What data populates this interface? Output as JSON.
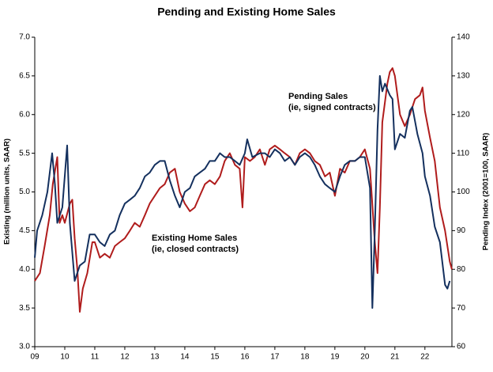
{
  "chart_data": {
    "type": "line",
    "title": "Pending and Existing Home Sales",
    "y_label": "Existing (million units, SAAR)",
    "y2_label": "Pending Index (2001=100, SAAR)",
    "xlim": [
      2009,
      2022.9
    ],
    "xticks": [
      {
        "value": 2009,
        "label": "09"
      },
      {
        "value": 2010,
        "label": "10"
      },
      {
        "value": 2011,
        "label": "11"
      },
      {
        "value": 2012,
        "label": "12"
      },
      {
        "value": 2013,
        "label": "13"
      },
      {
        "value": 2014,
        "label": "14"
      },
      {
        "value": 2015,
        "label": "15"
      },
      {
        "value": 2016,
        "label": "16"
      },
      {
        "value": 2017,
        "label": "17"
      },
      {
        "value": 2018,
        "label": "18"
      },
      {
        "value": 2019,
        "label": "19"
      },
      {
        "value": 2020,
        "label": "20"
      },
      {
        "value": 2021,
        "label": "21"
      },
      {
        "value": 2022,
        "label": "22"
      }
    ],
    "ylim": [
      3,
      7
    ],
    "yticks": [
      {
        "value": 3,
        "label": "3.0"
      },
      3.5,
      {
        "value": 4,
        "label": "4.0"
      },
      4.5,
      {
        "value": 5,
        "label": "5.0"
      },
      5.5,
      {
        "value": 6,
        "label": "6.0"
      },
      6.5,
      {
        "value": 7,
        "label": "7.0"
      }
    ],
    "y2lim": [
      60,
      140
    ],
    "y2ticks": [
      60,
      70,
      80,
      90,
      100,
      110,
      120,
      130,
      140
    ],
    "grid": false,
    "series": [
      {
        "name": "Existing Home Sales",
        "note": "(ie, closed contracts)",
        "color": "#b01c1c",
        "axis": "y",
        "x": [
          2009.0,
          2009.17,
          2009.33,
          2009.5,
          2009.6,
          2009.75,
          2009.83,
          2009.92,
          2010.0,
          2010.17,
          2010.25,
          2010.33,
          2010.42,
          2010.5,
          2010.6,
          2010.75,
          2010.92,
          2011.0,
          2011.17,
          2011.33,
          2011.5,
          2011.67,
          2011.83,
          2012.0,
          2012.17,
          2012.33,
          2012.5,
          2012.67,
          2012.83,
          2013.0,
          2013.17,
          2013.33,
          2013.5,
          2013.67,
          2013.83,
          2014.0,
          2014.17,
          2014.33,
          2014.5,
          2014.67,
          2014.83,
          2015.0,
          2015.17,
          2015.33,
          2015.5,
          2015.67,
          2015.83,
          2015.92,
          2016.0,
          2016.17,
          2016.33,
          2016.5,
          2016.67,
          2016.83,
          2017.0,
          2017.17,
          2017.33,
          2017.5,
          2017.67,
          2017.83,
          2018.0,
          2018.17,
          2018.33,
          2018.5,
          2018.67,
          2018.83,
          2019.0,
          2019.17,
          2019.33,
          2019.5,
          2019.67,
          2019.83,
          2020.0,
          2020.17,
          2020.33,
          2020.42,
          2020.5,
          2020.58,
          2020.75,
          2020.83,
          2020.92,
          2021.0,
          2021.17,
          2021.33,
          2021.5,
          2021.67,
          2021.83,
          2021.92,
          2022.0,
          2022.17,
          2022.33,
          2022.5,
          2022.67,
          2022.83,
          2022.9
        ],
        "values": [
          3.85,
          3.95,
          4.3,
          4.7,
          5.1,
          5.45,
          4.6,
          4.7,
          4.6,
          4.85,
          4.9,
          4.4,
          4.0,
          3.45,
          3.75,
          3.95,
          4.35,
          4.35,
          4.15,
          4.2,
          4.15,
          4.3,
          4.35,
          4.4,
          4.5,
          4.6,
          4.55,
          4.7,
          4.85,
          4.95,
          5.05,
          5.1,
          5.25,
          5.3,
          5.0,
          4.85,
          4.75,
          4.8,
          4.95,
          5.1,
          5.15,
          5.1,
          5.2,
          5.4,
          5.5,
          5.35,
          5.3,
          4.8,
          5.45,
          5.4,
          5.45,
          5.55,
          5.35,
          5.55,
          5.6,
          5.55,
          5.5,
          5.45,
          5.35,
          5.5,
          5.55,
          5.5,
          5.4,
          5.35,
          5.2,
          5.25,
          4.95,
          5.3,
          5.25,
          5.4,
          5.4,
          5.45,
          5.55,
          5.3,
          4.35,
          3.95,
          4.8,
          5.9,
          6.4,
          6.55,
          6.6,
          6.5,
          6.0,
          5.85,
          6.0,
          6.2,
          6.25,
          6.35,
          6.05,
          5.7,
          5.4,
          4.8,
          4.5,
          4.1,
          4.0
        ]
      },
      {
        "name": "Pending Sales",
        "note": "(ie, signed contracts)",
        "color": "#14305e",
        "axis": "y2",
        "x": [
          2009.0,
          2009.08,
          2009.25,
          2009.42,
          2009.58,
          2009.67,
          2009.75,
          2009.92,
          2010.08,
          2010.17,
          2010.33,
          2010.5,
          2010.67,
          2010.83,
          2011.0,
          2011.17,
          2011.33,
          2011.5,
          2011.67,
          2011.83,
          2012.0,
          2012.17,
          2012.33,
          2012.5,
          2012.67,
          2012.83,
          2013.0,
          2013.17,
          2013.33,
          2013.5,
          2013.67,
          2013.83,
          2014.0,
          2014.17,
          2014.33,
          2014.5,
          2014.67,
          2014.83,
          2015.0,
          2015.17,
          2015.33,
          2015.5,
          2015.67,
          2015.83,
          2016.0,
          2016.08,
          2016.25,
          2016.5,
          2016.67,
          2016.83,
          2017.0,
          2017.17,
          2017.33,
          2017.5,
          2017.67,
          2017.83,
          2018.0,
          2018.17,
          2018.33,
          2018.5,
          2018.67,
          2018.83,
          2019.0,
          2019.17,
          2019.33,
          2019.5,
          2019.67,
          2019.83,
          2020.0,
          2020.17,
          2020.25,
          2020.33,
          2020.42,
          2020.5,
          2020.58,
          2020.67,
          2020.83,
          2020.92,
          2021.0,
          2021.17,
          2021.33,
          2021.5,
          2021.58,
          2021.75,
          2021.92,
          2022.0,
          2022.17,
          2022.33,
          2022.5,
          2022.67,
          2022.75,
          2022.83
        ],
        "values": [
          83,
          90,
          94,
          100,
          110,
          102,
          92,
          96,
          112,
          92,
          77,
          81,
          82,
          89,
          89,
          87,
          86,
          89,
          90,
          94,
          97,
          98,
          99,
          101,
          104,
          105,
          107,
          108,
          108,
          103,
          99,
          96,
          100,
          101,
          104,
          105,
          106,
          108,
          108,
          110,
          109,
          109,
          108,
          107,
          110,
          113.6,
          109,
          110,
          110,
          109,
          111,
          110,
          108,
          109,
          107,
          109,
          110,
          109,
          107,
          104,
          102,
          101,
          100,
          104,
          107,
          108,
          108,
          109,
          109,
          101,
          70,
          90,
          116,
          130,
          126,
          128,
          125,
          124,
          111,
          115,
          114,
          121,
          122,
          115,
          110,
          104,
          99,
          91,
          87,
          76,
          75,
          77
        ]
      }
    ]
  }
}
